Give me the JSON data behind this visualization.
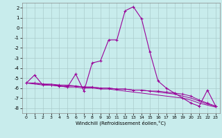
{
  "xlabel": "Windchill (Refroidissement éolien,°C)",
  "x": [
    0,
    1,
    2,
    3,
    4,
    5,
    6,
    7,
    8,
    9,
    10,
    11,
    12,
    13,
    14,
    15,
    16,
    17,
    18,
    19,
    20,
    21,
    22,
    23
  ],
  "line1": [
    -5.5,
    -4.7,
    -5.7,
    -5.7,
    -5.8,
    -5.9,
    -4.6,
    -6.3,
    -3.5,
    -3.3,
    -1.2,
    -1.2,
    1.7,
    2.1,
    0.9,
    -2.4,
    -5.3,
    -6.0,
    -6.5,
    -7.0,
    -7.5,
    -7.8,
    -6.2,
    -7.8
  ],
  "line2": [
    -5.5,
    -5.5,
    -5.6,
    -5.7,
    -5.7,
    -5.8,
    -5.8,
    -5.9,
    -5.9,
    -6.0,
    -6.0,
    -6.1,
    -6.1,
    -6.2,
    -6.2,
    -6.3,
    -6.3,
    -6.4,
    -6.5,
    -6.6,
    -6.8,
    -7.2,
    -7.5,
    -7.8
  ],
  "line3": [
    -5.5,
    -5.6,
    -5.7,
    -5.7,
    -5.8,
    -5.9,
    -5.9,
    -6.0,
    -6.0,
    -6.1,
    -6.1,
    -6.2,
    -6.3,
    -6.4,
    -6.5,
    -6.6,
    -6.7,
    -6.8,
    -6.9,
    -7.0,
    -7.2,
    -7.5,
    -7.7,
    -7.9
  ],
  "line4": [
    -5.5,
    -5.5,
    -5.6,
    -5.6,
    -5.7,
    -5.7,
    -5.8,
    -5.9,
    -5.9,
    -6.0,
    -6.0,
    -6.1,
    -6.1,
    -6.2,
    -6.2,
    -6.3,
    -6.4,
    -6.5,
    -6.6,
    -6.8,
    -7.0,
    -7.3,
    -7.6,
    -7.8
  ],
  "line_color": "#990099",
  "bg_color": "#c8ecec",
  "grid_color": "#aacccc",
  "ylim": [
    -8.5,
    2.5
  ],
  "xlim": [
    -0.5,
    23.5
  ],
  "yticks": [
    -8,
    -7,
    -6,
    -5,
    -4,
    -3,
    -2,
    -1,
    0,
    1,
    2
  ],
  "xticks": [
    0,
    1,
    2,
    3,
    4,
    5,
    6,
    7,
    8,
    9,
    10,
    11,
    12,
    13,
    14,
    15,
    16,
    17,
    18,
    19,
    20,
    21,
    22,
    23
  ]
}
